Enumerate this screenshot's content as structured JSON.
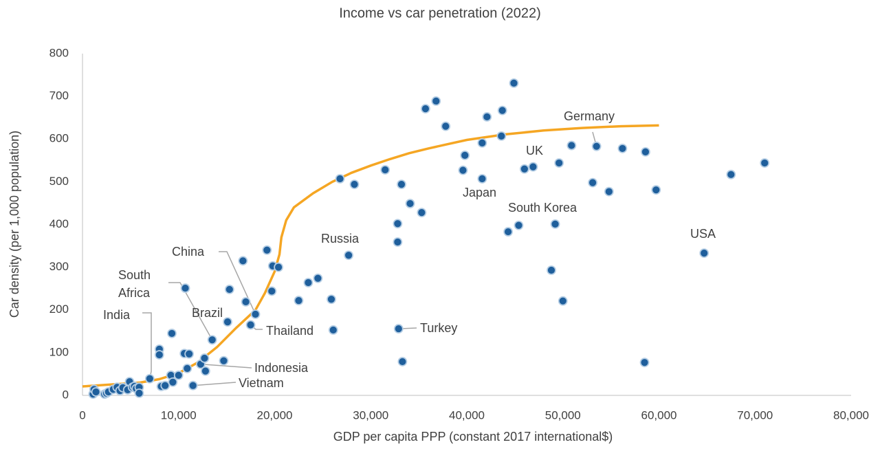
{
  "chart_data": {
    "type": "scatter",
    "title": "Income vs car penetration (2022)",
    "x_label": "GDP per capita PPP (constant 2017 international$)",
    "y_label": "Car density (per 1,000 population)",
    "xlim": [
      0,
      80000
    ],
    "xticks": [
      0,
      {
        "value": 10000,
        "label": "10,000"
      },
      {
        "value": 20000,
        "label": "20,000"
      },
      {
        "value": 30000,
        "label": "30,000"
      },
      {
        "value": 40000,
        "label": "40,000"
      },
      {
        "value": 50000,
        "label": "50,000"
      },
      {
        "value": 60000,
        "label": "60,000"
      },
      {
        "value": 70000,
        "label": "70,000"
      },
      {
        "value": 80000,
        "label": "80,000"
      }
    ],
    "ylim": [
      0,
      800
    ],
    "yticks": [
      0,
      100,
      200,
      300,
      400,
      500,
      600,
      700,
      800
    ],
    "grid": false,
    "series": [
      {
        "color": "#1f5f9c",
        "x": [
          1100,
          1200,
          1400,
          2300,
          2500,
          2700,
          3200,
          3600,
          3900,
          4200,
          4700,
          4900,
          5200,
          5400,
          5600,
          5900,
          5900,
          7000,
          8000,
          8000,
          8200,
          8600,
          9200,
          9300,
          9400,
          10000,
          10600,
          10700,
          10900,
          11100,
          11500,
          12300,
          12700,
          12800,
          13500,
          14700,
          15100,
          15300,
          16700,
          17000,
          17500,
          18000,
          19200,
          19700,
          19800,
          20400,
          22500,
          23500,
          24500,
          25900,
          26100,
          26800,
          28300,
          27700,
          31500,
          32800,
          32800,
          32900,
          33200,
          33300,
          34100,
          35300,
          35700,
          36800,
          37800,
          39600,
          39800,
          41600,
          41600,
          42100,
          43600,
          43700,
          44300,
          44900,
          45400,
          46000,
          46900,
          48800,
          49200,
          49600,
          50000,
          50900,
          53100,
          53500,
          54800,
          56200,
          58500,
          58600,
          59700,
          64700,
          67500,
          71000
        ],
        "values": [
          3,
          14,
          8,
          3,
          5,
          8,
          14,
          19,
          11,
          18,
          13,
          32,
          19,
          21,
          16,
          19,
          5,
          39,
          108,
          95,
          21,
          23,
          47,
          145,
          31,
          47,
          98,
          251,
          63,
          97,
          23,
          73,
          87,
          57,
          130,
          81,
          172,
          248,
          315,
          219,
          165,
          190,
          340,
          244,
          303,
          300,
          222,
          264,
          274,
          225,
          153,
          507,
          494,
          328,
          528,
          402,
          359,
          156,
          494,
          79,
          449,
          428,
          671,
          689,
          630,
          527,
          562,
          591,
          507,
          652,
          607,
          667,
          383,
          731,
          398,
          530,
          535,
          293,
          401,
          544,
          221,
          585,
          498,
          583,
          477,
          578,
          77,
          570,
          481,
          333,
          517,
          544
        ]
      }
    ],
    "trendline": {
      "color": "#f5a623",
      "x": [
        0,
        4000,
        6000,
        8000,
        10000,
        12000,
        14000,
        16000,
        18000,
        19000,
        20000,
        20500,
        20700,
        21200,
        22000,
        24000,
        26000,
        28000,
        30000,
        32000,
        34000,
        36000,
        38000,
        40000,
        44000,
        48000,
        52000,
        56000,
        60000
      ],
      "values": [
        21,
        27,
        30,
        38,
        52,
        77,
        113,
        158,
        200,
        240,
        290,
        330,
        370,
        410,
        440,
        473,
        500,
        521,
        538,
        553,
        567,
        578,
        588,
        598,
        611,
        620,
        626,
        630,
        632
      ]
    },
    "annotations": [
      {
        "text": "China",
        "x": 18000,
        "y": 190
      },
      {
        "text": "South Africa",
        "x": 13500,
        "y": 130
      },
      {
        "text": "India",
        "x": 7000,
        "y": 39
      },
      {
        "text": "Brazil",
        "x": 15100,
        "y": 172
      },
      {
        "text": "Thailand",
        "x": 17500,
        "y": 165
      },
      {
        "text": "Indonesia",
        "x": 12300,
        "y": 73
      },
      {
        "text": "Vietnam",
        "x": 11500,
        "y": 23
      },
      {
        "text": "Russia",
        "x": 27700,
        "y": 328
      },
      {
        "text": "Turkey",
        "x": 32900,
        "y": 156
      },
      {
        "text": "Japan",
        "x": 41600,
        "y": 507
      },
      {
        "text": "UK",
        "x": 46900,
        "y": 535
      },
      {
        "text": "Germany",
        "x": 53500,
        "y": 583
      },
      {
        "text": "South Korea",
        "x": 49200,
        "y": 401
      },
      {
        "text": "USA",
        "x": 64700,
        "y": 333
      }
    ]
  }
}
